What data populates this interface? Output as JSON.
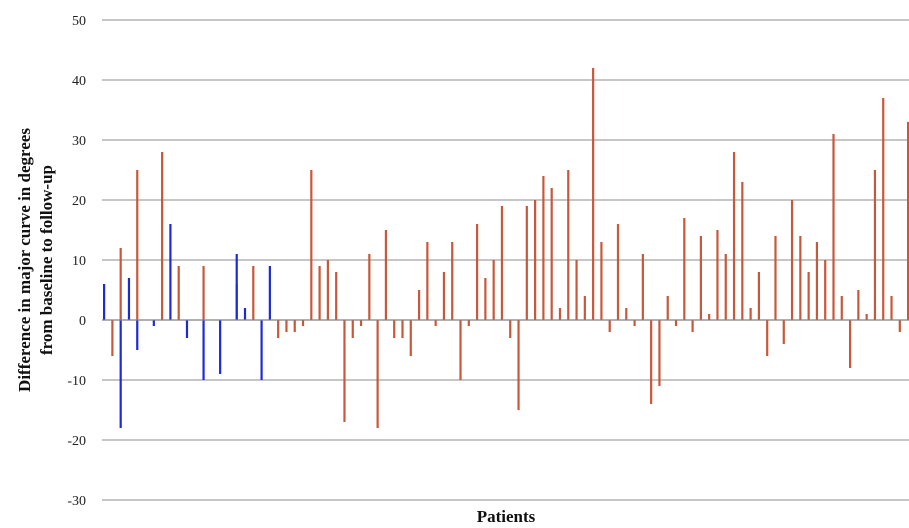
{
  "chart_data": {
    "type": "bar",
    "title": "",
    "xlabel": "Patients",
    "ylabel_lines": [
      "Difference in major curve in degrees",
      "from baseline to follow-up"
    ],
    "ylim": [
      -30,
      50
    ],
    "yticks": [
      50,
      40,
      30,
      20,
      10,
      0,
      -10,
      -20,
      -30
    ],
    "grid": true,
    "legend": "none",
    "colors": {
      "Series 1": "#1c2bd9",
      "Series 2": "#c8583a"
    },
    "series": [
      {
        "values": [
          6,
          0,
          -18,
          7,
          -5,
          0,
          -1,
          0,
          16,
          0,
          -3,
          0,
          -10,
          0,
          -9,
          0,
          11,
          2,
          0,
          -10,
          9
        ]
      },
      {
        "values": [
          0,
          -6,
          12,
          0,
          25,
          0,
          0,
          28,
          0,
          9,
          0,
          0,
          9,
          0,
          0,
          0,
          6,
          0,
          9,
          0,
          0,
          -3,
          -2,
          -2,
          -1,
          25,
          9,
          10,
          8,
          -17,
          -3,
          -1,
          11,
          -18,
          15,
          -3,
          -3,
          -6,
          5,
          13,
          -1,
          8,
          13,
          -10,
          -1,
          16,
          7,
          10,
          19,
          -3,
          -15,
          19,
          20,
          24,
          22,
          2,
          25,
          10,
          4,
          42,
          13,
          -2,
          16,
          2,
          -1,
          11,
          -14,
          -11,
          4,
          -1,
          17,
          -2,
          14,
          1,
          15,
          11,
          28,
          23,
          2,
          8,
          -6,
          14,
          -4,
          20,
          14,
          8,
          13,
          10,
          31,
          4,
          -8,
          5,
          1,
          25,
          37,
          4,
          -2,
          33
        ]
      }
    ]
  }
}
